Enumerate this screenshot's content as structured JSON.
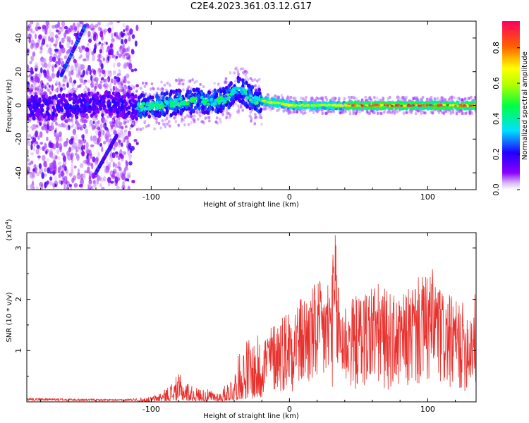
{
  "title": "C2E4.2023.361.03.12.G17",
  "colors": {
    "snr_line": "#e8302c",
    "spectro_low": "#7b00e6",
    "spectro_mid": "#00e0e0",
    "spectro_high": "#ff0030"
  },
  "chart_data": [
    {
      "type": "heatmap",
      "name": "spectrogram",
      "xlabel": "Height of straight line (km)",
      "ylabel": "Frequency (Hz)",
      "xlim": [
        -190,
        135
      ],
      "ylim": [
        -50,
        50
      ],
      "x_ticks": [
        -100,
        0,
        100
      ],
      "x_tick_labels": [
        "-100",
        "0",
        "100"
      ],
      "y_ticks": [
        -40,
        -20,
        0,
        20,
        40
      ],
      "y_tick_labels": [
        "-40",
        "-20",
        "0",
        "20",
        "40"
      ],
      "colorbar": {
        "label": "Normalized spectral amplitude",
        "range": [
          0,
          0.95
        ],
        "ticks": [
          0.0,
          0.2,
          0.4,
          0.6,
          0.8
        ],
        "tick_labels": [
          "0.0",
          "0.2",
          "0.4",
          "0.6",
          "0.8"
        ]
      },
      "ridge_center": [
        [
          -190,
          -2
        ],
        [
          -170,
          -1
        ],
        [
          -150,
          0
        ],
        [
          -130,
          1
        ],
        [
          -110,
          -1
        ],
        [
          -95,
          0
        ],
        [
          -80,
          2
        ],
        [
          -65,
          3
        ],
        [
          -55,
          2
        ],
        [
          -45,
          4
        ],
        [
          -38,
          10
        ],
        [
          -32,
          7
        ],
        [
          -25,
          3
        ],
        [
          -15,
          2
        ],
        [
          -5,
          1
        ],
        [
          0,
          0
        ],
        [
          20,
          0
        ],
        [
          60,
          0
        ],
        [
          100,
          0
        ],
        [
          135,
          0
        ]
      ]
    },
    {
      "type": "line",
      "name": "snr",
      "xlabel": "Height of straight line (km)",
      "ylabel": "SNR (10 * v/v)",
      "scale_label_base": "(x10",
      "scale_label_exp": "4",
      "scale_label_end": ")",
      "xlim": [
        -190,
        135
      ],
      "ylim": [
        0,
        3.3
      ],
      "x_ticks": [
        -100,
        0,
        100
      ],
      "x_tick_labels": [
        "-100",
        "0",
        "100"
      ],
      "y_ticks": [
        1,
        2,
        3
      ],
      "y_tick_labels": [
        "1",
        "2",
        "3"
      ],
      "envelope": {
        "x": [
          -190,
          -150,
          -120,
          -100,
          -90,
          -80,
          -70,
          -60,
          -50,
          -40,
          -35,
          -30,
          -20,
          -10,
          0,
          10,
          15,
          20,
          25,
          30,
          33,
          36,
          40,
          50,
          60,
          70,
          80,
          90,
          100,
          105,
          110,
          120,
          130,
          135
        ],
        "y": [
          0.08,
          0.06,
          0.05,
          0.1,
          0.25,
          0.55,
          0.3,
          0.25,
          0.2,
          0.6,
          1.1,
          1.3,
          1.3,
          1.6,
          1.9,
          2.1,
          2.2,
          2.4,
          2.3,
          2.6,
          3.25,
          2.3,
          2.0,
          2.1,
          2.4,
          2.2,
          2.0,
          2.4,
          2.5,
          2.65,
          2.2,
          2.0,
          1.9,
          2.2
        ]
      }
    }
  ]
}
